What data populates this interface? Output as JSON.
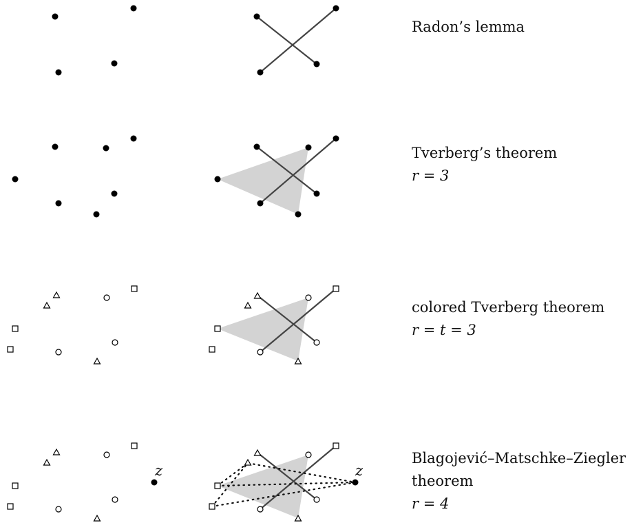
{
  "rows": [
    {
      "title": "Radon’s lemma",
      "param": ""
    },
    {
      "title": "Tverberg’s theorem",
      "param": "r = 3"
    },
    {
      "title": "colored Tverberg theorem",
      "param": "r = t = 3"
    },
    {
      "title": "Blagojević–Matschke–Ziegler",
      "title2": "theorem",
      "param": "r = 4"
    }
  ],
  "point_label": "z",
  "colors": {
    "fill": "#d3d3d3",
    "line": "#444444",
    "point": "#000000"
  }
}
